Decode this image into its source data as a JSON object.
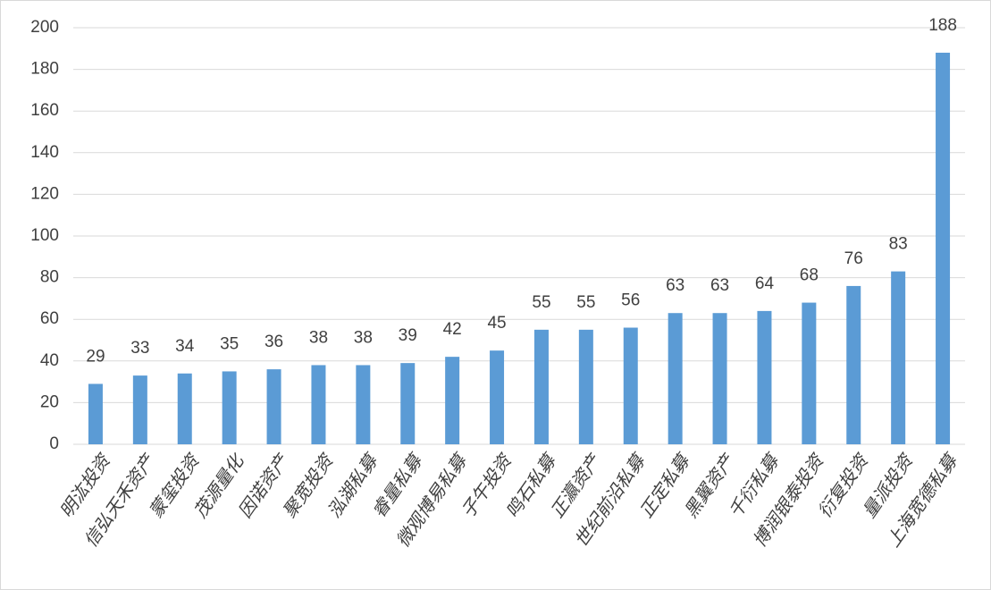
{
  "chart_data": {
    "type": "bar",
    "categories": [
      "明汯投资",
      "信弘天禾资产",
      "蒙玺投资",
      "茂源量化",
      "因诺资产",
      "聚宽投资",
      "泓湖私募",
      "睿量私募",
      "微观博易私募",
      "子午投资",
      "鸣石私募",
      "正瀛资产",
      "世纪前沿私募",
      "正定私募",
      "黑翼资产",
      "千衍私募",
      "博润银泰投资",
      "衍复投资",
      "量派投资",
      "上海宽德私募"
    ],
    "values": [
      29,
      33,
      34,
      35,
      36,
      38,
      38,
      39,
      42,
      45,
      55,
      55,
      56,
      63,
      63,
      64,
      68,
      76,
      83,
      188
    ],
    "color": "#5b9bd5",
    "ylim": [
      0,
      200
    ],
    "yticks": [
      0,
      20,
      40,
      60,
      80,
      100,
      120,
      140,
      160,
      180,
      200
    ],
    "grid": true
  }
}
